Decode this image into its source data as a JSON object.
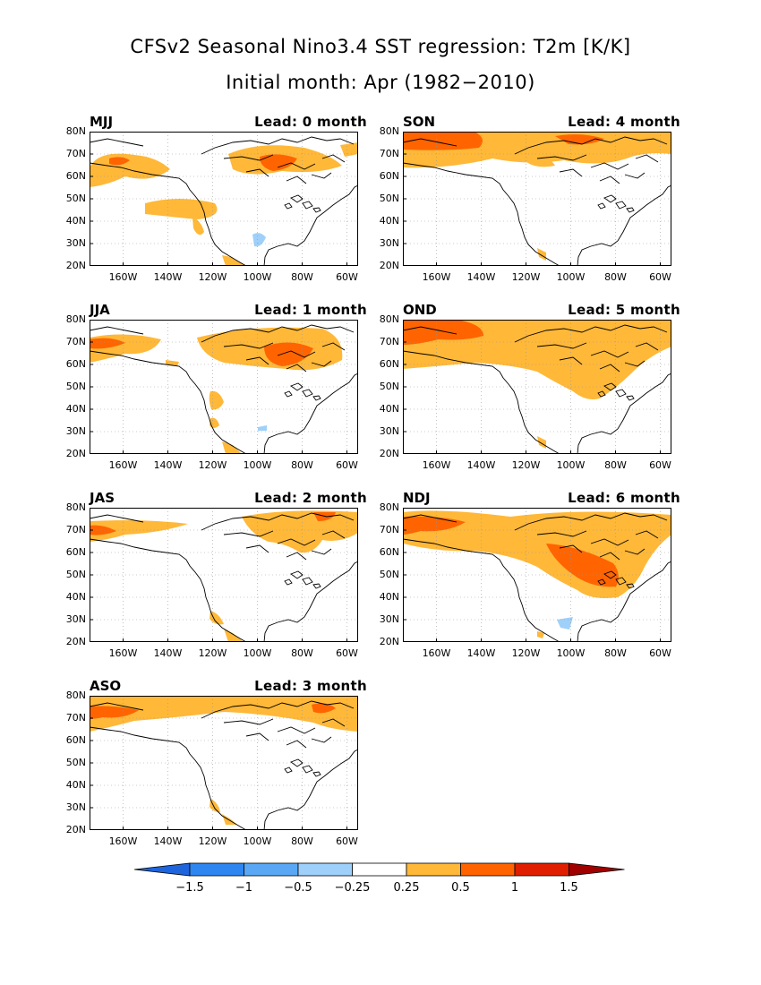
{
  "title": {
    "line1": "CFSv2 Seasonal Nino3.4 SST regression: T2m [K/K]",
    "line2": "Initial month: Apr (1982−2010)"
  },
  "axes": {
    "lat_labels": [
      "80N",
      "70N",
      "60N",
      "50N",
      "40N",
      "30N",
      "20N"
    ],
    "lon_labels": [
      "160W",
      "140W",
      "120W",
      "100W",
      "80W",
      "60W"
    ]
  },
  "panels": [
    {
      "season": "MJJ",
      "lead": "Lead: 0 month"
    },
    {
      "season": "SON",
      "lead": "Lead: 4 month"
    },
    {
      "season": "JJA",
      "lead": "Lead: 1 month"
    },
    {
      "season": "OND",
      "lead": "Lead: 5 month"
    },
    {
      "season": "JAS",
      "lead": "Lead: 2 month"
    },
    {
      "season": "NDJ",
      "lead": "Lead: 6 month"
    },
    {
      "season": "ASO",
      "lead": "Lead: 3 month"
    }
  ],
  "colorbar": {
    "labels": [
      "−1.5",
      "−1",
      "−0.5",
      "−0.25",
      "0.25",
      "0.5",
      "1",
      "1.5"
    ],
    "colors": [
      "#1e64dc",
      "#2e86f0",
      "#5aa8f5",
      "#9fd0fa",
      "#ffffff",
      "#ffb838",
      "#ff6400",
      "#e01e00",
      "#a00000"
    ]
  }
}
